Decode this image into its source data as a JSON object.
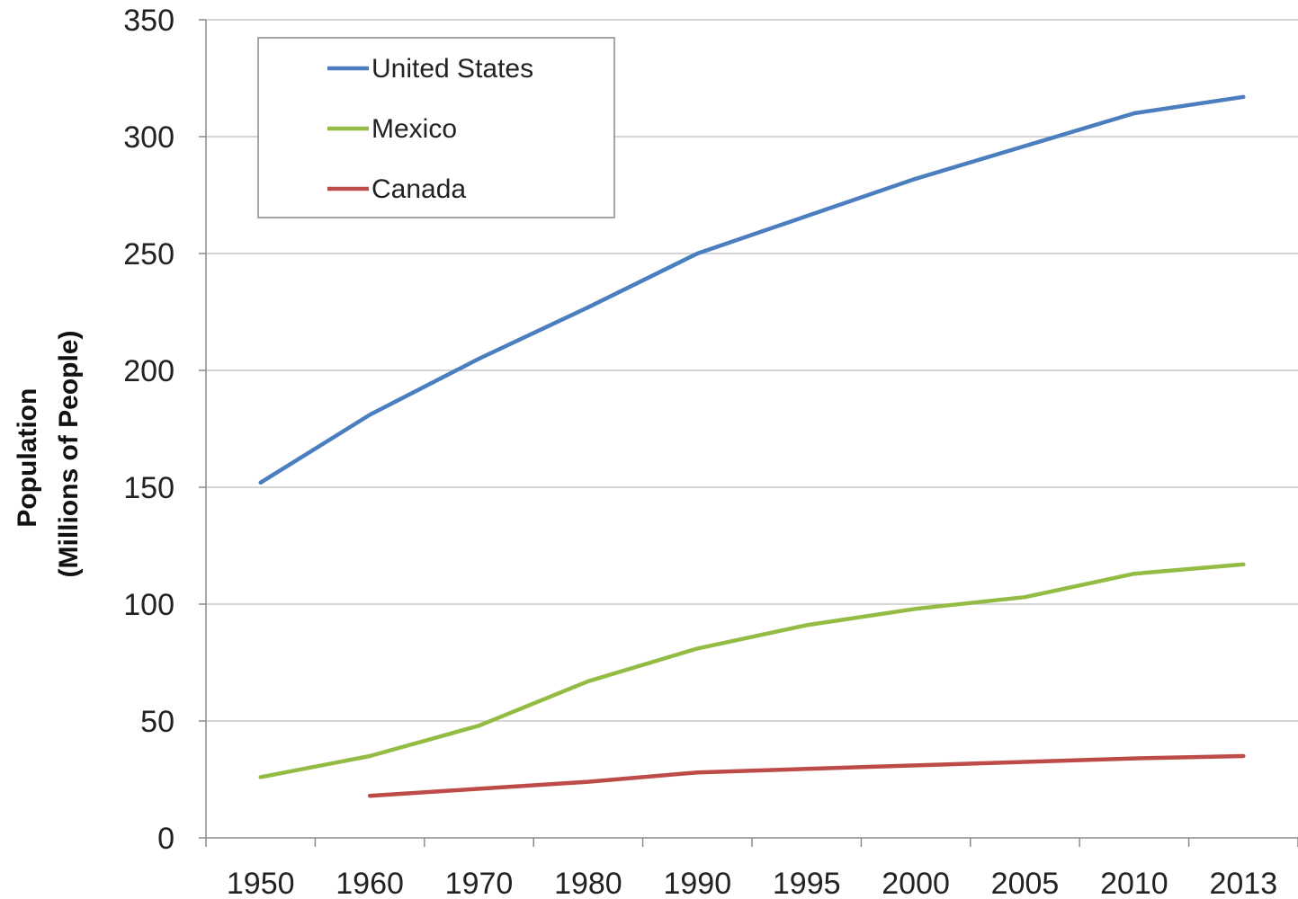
{
  "chart_data": {
    "type": "line",
    "title": "",
    "xlabel": "",
    "ylabel": [
      "Population",
      "(Millions of People)"
    ],
    "categories": [
      "1950",
      "1960",
      "1970",
      "1980",
      "1990",
      "1995",
      "2000",
      "2005",
      "2010",
      "2013"
    ],
    "yticks": [
      "0",
      "50",
      "100",
      "150",
      "200",
      "250",
      "300",
      "350"
    ],
    "ylim": [
      0,
      350
    ],
    "grid": true,
    "legend": "top-left",
    "series": [
      {
        "name": "United States",
        "color": "#4a7ebf",
        "values": [
          152,
          181,
          205,
          227,
          250,
          266,
          282,
          296,
          310,
          317
        ]
      },
      {
        "name": "Mexico",
        "color": "#94bc45",
        "values": [
          26,
          35,
          48,
          67,
          81,
          91,
          98,
          103,
          113,
          117
        ]
      },
      {
        "name": "Canada",
        "color": "#be4b48",
        "values": [
          null,
          18,
          21,
          24,
          28,
          29.5,
          31,
          32.5,
          34,
          35
        ]
      }
    ]
  }
}
